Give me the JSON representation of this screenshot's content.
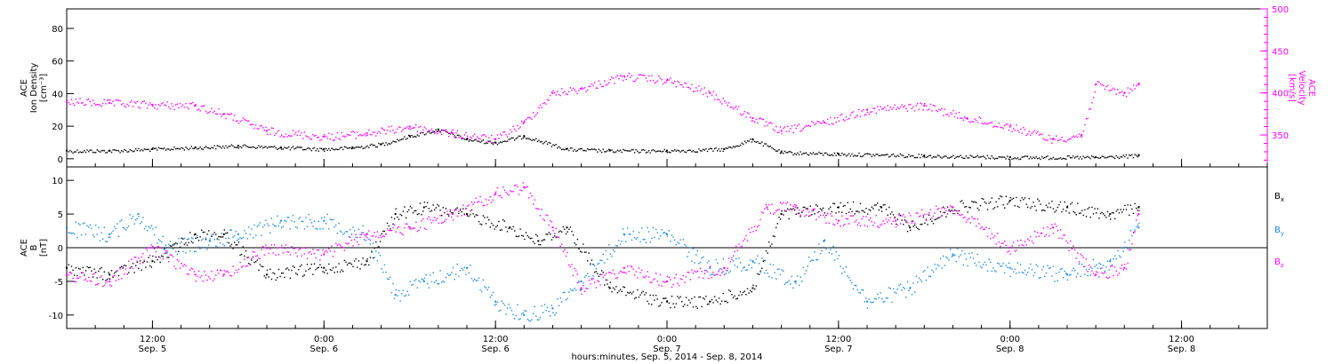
{
  "chart_data": [
    {
      "type": "scatter",
      "panel": "ace-plasma",
      "ylabel_left": [
        "ACE",
        "Ion Density",
        "[cm⁻³]"
      ],
      "ylabel_right": [
        "ACE",
        "Velocity",
        "[km/s]"
      ],
      "yticks_left": [
        "0",
        "20",
        "40",
        "60",
        "80"
      ],
      "yticks_right": [
        "350",
        "400",
        "450",
        "500"
      ],
      "ylim_left": [
        -5,
        92
      ],
      "ylim_right": [
        312,
        500
      ],
      "colors": {
        "density": "#000000",
        "velocity": "#ff00ff"
      },
      "series": [
        {
          "key": "density",
          "name": "Ion Density",
          "axis": "left",
          "x": [
            "2014-09-05 06:00",
            "2014-09-05 09:00",
            "2014-09-05 12:00",
            "2014-09-05 15:00",
            "2014-09-05 18:00",
            "2014-09-05 21:00",
            "2014-09-06 00:00",
            "2014-09-06 02:00",
            "2014-09-06 04:00",
            "2014-09-06 06:00",
            "2014-09-06 08:00",
            "2014-09-06 10:00",
            "2014-09-06 12:00",
            "2014-09-06 14:00",
            "2014-09-06 17:00",
            "2014-09-06 20:00",
            "2014-09-07 00:00",
            "2014-09-07 04:00",
            "2014-09-07 06:00",
            "2014-09-07 08:00",
            "2014-09-07 12:00",
            "2014-09-07 18:00",
            "2014-09-08 00:00",
            "2014-09-08 06:00",
            "2014-09-08 09:00"
          ],
          "values": [
            5,
            5,
            6,
            7,
            8,
            7,
            6,
            7,
            9,
            14,
            18,
            12,
            10,
            14,
            6,
            5,
            5,
            6,
            12,
            4,
            3,
            2,
            1,
            1,
            2
          ]
        },
        {
          "key": "velocity",
          "name": "Velocity",
          "axis": "right",
          "x": [
            "2014-09-05 06:00",
            "2014-09-05 09:00",
            "2014-09-05 12:00",
            "2014-09-05 15:00",
            "2014-09-05 17:00",
            "2014-09-05 20:00",
            "2014-09-06 00:00",
            "2014-09-06 03:00",
            "2014-09-06 06:00",
            "2014-09-06 09:00",
            "2014-09-06 12:00",
            "2014-09-06 14:00",
            "2014-09-06 16:00",
            "2014-09-06 18:00",
            "2014-09-06 21:00",
            "2014-09-07 00:00",
            "2014-09-07 03:00",
            "2014-09-07 06:00",
            "2014-09-07 08:00",
            "2014-09-07 11:00",
            "2014-09-07 14:00",
            "2014-09-07 18:00",
            "2014-09-07 21:00",
            "2014-09-08 00:00",
            "2014-09-08 03:00",
            "2014-09-08 05:00",
            "2014-09-08 06:00",
            "2014-09-08 08:00",
            "2014-09-08 09:00"
          ],
          "values": [
            390,
            388,
            386,
            385,
            375,
            355,
            348,
            352,
            360,
            352,
            345,
            365,
            400,
            405,
            420,
            415,
            400,
            370,
            355,
            365,
            380,
            385,
            370,
            360,
            345,
            350,
            410,
            400,
            410
          ]
        }
      ]
    },
    {
      "type": "scatter",
      "panel": "ace-magnetic-field",
      "ylabel_left": [
        "ACE",
        "B",
        "[nT]"
      ],
      "yticks_left": [
        "-10",
        "-5",
        "0",
        "5",
        "10"
      ],
      "ylim": [
        -12,
        12
      ],
      "zero_line": true,
      "xlabel": "hours:minutes, Sep.  5, 2014 - Sep.  8, 2014",
      "xticks": [
        {
          "time": "12:00",
          "date": "Sep. 5"
        },
        {
          "time": "0:00",
          "date": "Sep. 6"
        },
        {
          "time": "12:00",
          "date": "Sep. 6"
        },
        {
          "time": "0:00",
          "date": "Sep. 7"
        },
        {
          "time": "12:00",
          "date": "Sep. 7"
        },
        {
          "time": "0:00",
          "date": "Sep. 8"
        },
        {
          "time": "12:00",
          "date": "Sep. 8"
        }
      ],
      "xlim": [
        "2014-09-05 06:00",
        "2014-09-08 18:00"
      ],
      "legend": [
        {
          "key": "Bx",
          "base": "B",
          "sub": "x"
        },
        {
          "key": "By",
          "base": "B",
          "sub": "y"
        },
        {
          "key": "Bz",
          "base": "B",
          "sub": "z"
        }
      ],
      "legend_position": "right",
      "colors": {
        "Bx": "#000000",
        "By": "#1a8ae0",
        "Bz": "#ff00ff"
      },
      "series": [
        {
          "key": "Bx",
          "x": [
            "2014-09-05 06:00",
            "2014-09-05 09:00",
            "2014-09-05 12:00",
            "2014-09-05 15:00",
            "2014-09-05 17:00",
            "2014-09-05 20:00",
            "2014-09-06 00:00",
            "2014-09-06 03:00",
            "2014-09-06 05:00",
            "2014-09-06 07:00",
            "2014-09-06 10:00",
            "2014-09-06 13:00",
            "2014-09-06 15:00",
            "2014-09-06 17:00",
            "2014-09-06 20:00",
            "2014-09-07 00:00",
            "2014-09-07 03:00",
            "2014-09-07 06:00",
            "2014-09-07 08:00",
            "2014-09-07 12:00",
            "2014-09-07 15:00",
            "2014-09-07 17:00",
            "2014-09-07 20:00",
            "2014-09-08 00:00",
            "2014-09-08 04:00",
            "2014-09-08 07:00",
            "2014-09-08 09:00"
          ],
          "values": [
            -3,
            -4,
            -2,
            2,
            2,
            -4,
            -3,
            -2,
            5,
            6,
            5,
            3,
            1,
            3,
            -6,
            -8,
            -8,
            -6,
            5,
            6,
            6,
            3,
            6,
            7,
            6,
            5,
            6
          ]
        },
        {
          "key": "By",
          "x": [
            "2014-09-05 06:00",
            "2014-09-05 09:00",
            "2014-09-05 11:00",
            "2014-09-05 13:00",
            "2014-09-05 16:00",
            "2014-09-05 18:00",
            "2014-09-05 21:00",
            "2014-09-06 00:00",
            "2014-09-06 03:00",
            "2014-09-06 05:00",
            "2014-09-06 07:00",
            "2014-09-06 10:00",
            "2014-09-06 12:00",
            "2014-09-06 14:00",
            "2014-09-06 16:00",
            "2014-09-06 18:00",
            "2014-09-06 21:00",
            "2014-09-07 00:00",
            "2014-09-07 03:00",
            "2014-09-07 06:00",
            "2014-09-07 09:00",
            "2014-09-07 11:00",
            "2014-09-07 14:00",
            "2014-09-07 17:00",
            "2014-09-07 20:00",
            "2014-09-08 00:00",
            "2014-09-08 04:00",
            "2014-09-08 07:00",
            "2014-09-08 09:00"
          ],
          "values": [
            3,
            2,
            5,
            0,
            1,
            2,
            4,
            4,
            2,
            -7,
            -5,
            -3,
            -8,
            -10,
            -9,
            -5,
            2,
            2,
            -3,
            -2,
            -5,
            1,
            -8,
            -6,
            -1,
            -3,
            -4,
            -2,
            3
          ]
        },
        {
          "key": "Bz",
          "x": [
            "2014-09-05 06:00",
            "2014-09-05 09:00",
            "2014-09-05 12:00",
            "2014-09-05 15:00",
            "2014-09-05 17:00",
            "2014-09-05 20:00",
            "2014-09-06 00:00",
            "2014-09-06 03:00",
            "2014-09-06 06:00",
            "2014-09-06 09:00",
            "2014-09-06 12:00",
            "2014-09-06 14:00",
            "2014-09-06 16:00",
            "2014-09-06 18:00",
            "2014-09-06 21:00",
            "2014-09-07 00:00",
            "2014-09-07 04:00",
            "2014-09-07 07:00",
            "2014-09-07 09:00",
            "2014-09-07 12:00",
            "2014-09-07 16:00",
            "2014-09-07 20:00",
            "2014-09-08 00:00",
            "2014-09-08 03:00",
            "2014-09-08 06:00",
            "2014-09-08 08:00",
            "2014-09-08 09:00"
          ],
          "values": [
            -4,
            -5,
            0,
            -4,
            -4,
            0,
            -1,
            2,
            3,
            5,
            8,
            9,
            3,
            -6,
            -3,
            -5,
            -3,
            6,
            6,
            4,
            4,
            6,
            0,
            3,
            -4,
            -3,
            5
          ]
        }
      ]
    }
  ]
}
